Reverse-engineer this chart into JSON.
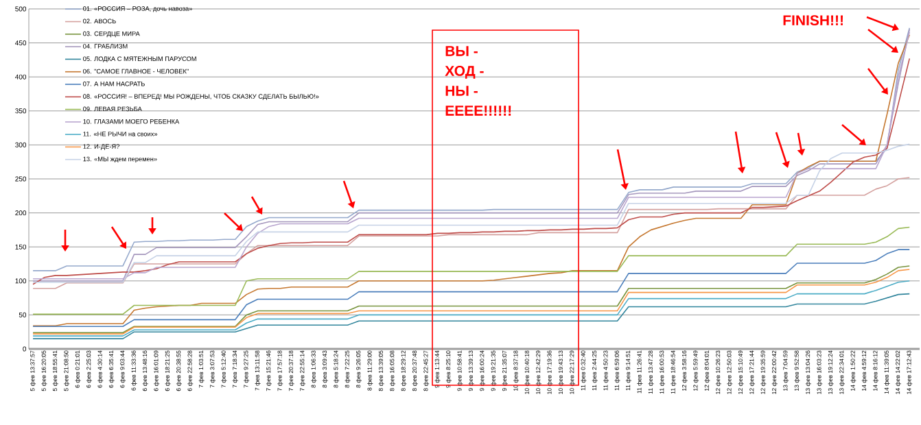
{
  "chart_data": {
    "type": "line",
    "categories": [
      "5 фев 13:37:57",
      "5 фев 16:20:05",
      "5 фев 18:55:41",
      "5 фев 21:08:50",
      "6 фев 0:21:01",
      "6 фев 2:25:03",
      "6 фев 4:30:14",
      "6 фев 6:35:41",
      "6 фев 9:03:44",
      "6 фев 11:33:36",
      "6 фев 13:48:16",
      "6 фев 16:01:09",
      "6 фев 18:21:25",
      "6 фев 20:38:55",
      "6 фев 22:58:28",
      "7 фев 1:03:51",
      "7 фев 3:07:53",
      "7 фев 5:12:40",
      "7 фев 7:18:34",
      "7 фев 9:27:25",
      "7 фев 13:11:58",
      "7 фев 15:21:46",
      "7 фев 17:57:18",
      "7 фев 20:37:18",
      "7 фев 22:55:14",
      "8 фев 1:06:33",
      "8 фев 3:09:43",
      "8 фев 5:18:24",
      "8 фев 7:22:25",
      "8 фев 9:26:05",
      "8 фев 11:29:00",
      "8 фев 13:39:05",
      "8 фев 16:05:08",
      "8 фев 18:29:12",
      "8 фев 20:37:48",
      "8 фев 22:45:27",
      "9 фев 1:13:44",
      "9 фев 8:25:10",
      "9 фев 10:58:41",
      "9 фев 13:39:13",
      "9 фев 16:00:24",
      "9 фев 19:21:35",
      "9 фев 21:35:07",
      "10 фев 8:37:18",
      "10 фев 10:40:18",
      "10 фев 12:42:29",
      "10 фев 17:19:36",
      "10 фев 19:43:13",
      "10 фев 22:17:29",
      "11 фев 0:32:40",
      "11 фев 2:44:25",
      "11 фев 4:50:23",
      "11 фев 6:59:06",
      "11 фев 9:14:51",
      "11 фев 11:26:41",
      "11 фев 13:47:28",
      "11 фев 16:00:53",
      "11 фев 18:46:54",
      "12 фев 3:58:16",
      "12 фев 5:59:49",
      "12 фев 8:04:01",
      "12 фев 10:26:23",
      "12 фев 12:50:03",
      "12 фев 15:10:49",
      "12 фев 17:21:44",
      "12 фев 19:35:59",
      "12 фев 22:00:42",
      "13 фев 7:04:59",
      "13 фев 9:52:58",
      "13 фев 13:04:26",
      "13 фев 16:03:23",
      "13 фев 19:12:24",
      "13 фев 22:34:01",
      "14 фев 1:50:22",
      "14 фев 4:59:12",
      "14 фев 8:16:12",
      "14 фев 11:39:05",
      "14 фев 14:22:02",
      "14 фев 17:12:43"
    ],
    "series": [
      {
        "name": "01. «РОССИЯ – РОЗА, дочь навоза»",
        "color": "#95A9CC",
        "values": [
          115,
          115,
          115,
          122,
          122,
          122,
          122,
          122,
          122,
          157,
          158,
          158,
          159,
          159,
          160,
          160,
          160,
          161,
          161,
          180,
          188,
          193,
          193,
          193,
          193,
          193,
          193,
          193,
          193,
          204,
          204,
          204,
          204,
          204,
          204,
          204,
          204,
          204,
          204,
          204,
          204,
          205,
          205,
          205,
          205,
          205,
          205,
          205,
          205,
          205,
          205,
          205,
          205,
          230,
          234,
          234,
          234,
          238,
          238,
          238,
          238,
          238,
          238,
          238,
          243,
          243,
          243,
          243,
          260,
          266,
          276,
          276,
          276,
          276,
          276,
          276,
          295,
          410,
          472
        ]
      },
      {
        "name": "02. АВОСЬ",
        "color": "#D4A09E",
        "values": [
          89,
          89,
          89,
          97,
          97,
          97,
          97,
          97,
          97,
          125,
          125,
          125,
          125,
          125,
          125,
          125,
          125,
          125,
          125,
          140,
          152,
          152,
          152,
          152,
          152,
          152,
          152,
          152,
          152,
          166,
          166,
          166,
          166,
          166,
          166,
          166,
          166,
          168,
          168,
          168,
          168,
          168,
          168,
          168,
          168,
          171,
          171,
          171,
          171,
          171,
          171,
          171,
          171,
          205,
          205,
          205,
          205,
          205,
          205,
          205,
          205,
          206,
          206,
          206,
          206,
          206,
          206,
          206,
          226,
          226,
          226,
          226,
          226,
          226,
          226,
          235,
          240,
          250,
          252
        ]
      },
      {
        "name": "03. СЕРДЦЕ МИРА",
        "color": "#77933C",
        "values": [
          24,
          24,
          24,
          24,
          24,
          24,
          24,
          24,
          24,
          33,
          33,
          33,
          33,
          33,
          33,
          33,
          33,
          33,
          33,
          50,
          56,
          56,
          56,
          56,
          56,
          56,
          56,
          56,
          56,
          63,
          63,
          63,
          63,
          63,
          63,
          63,
          63,
          63,
          63,
          63,
          63,
          63,
          63,
          63,
          63,
          63,
          63,
          63,
          63,
          63,
          63,
          63,
          63,
          89,
          89,
          89,
          89,
          89,
          89,
          89,
          89,
          89,
          89,
          89,
          89,
          89,
          89,
          89,
          97,
          97,
          97,
          97,
          97,
          97,
          97,
          102,
          110,
          120,
          122
        ]
      },
      {
        "name": "04. ГРАБЛИЗМ",
        "color": "#A597BD",
        "values": [
          100,
          100,
          100,
          100,
          100,
          100,
          100,
          100,
          100,
          139,
          139,
          149,
          149,
          149,
          149,
          149,
          149,
          149,
          149,
          165,
          183,
          187,
          187,
          187,
          187,
          187,
          187,
          187,
          187,
          200,
          200,
          200,
          200,
          200,
          200,
          200,
          200,
          200,
          200,
          200,
          200,
          200,
          200,
          200,
          200,
          200,
          200,
          200,
          200,
          200,
          200,
          200,
          200,
          227,
          229,
          229,
          229,
          229,
          229,
          232,
          232,
          232,
          232,
          232,
          239,
          239,
          239,
          239,
          255,
          262,
          272,
          272,
          272,
          272,
          272,
          272,
          300,
          390,
          470
        ]
      },
      {
        "name": "05. ЛОДКА С МЯТЕЖНЫМ  ПАРУСОМ",
        "color": "#31859C",
        "values": [
          15,
          15,
          15,
          15,
          15,
          15,
          15,
          15,
          15,
          25,
          25,
          25,
          25,
          25,
          25,
          25,
          25,
          25,
          25,
          30,
          35,
          35,
          35,
          35,
          35,
          35,
          35,
          35,
          35,
          41,
          41,
          41,
          41,
          41,
          41,
          41,
          41,
          41,
          41,
          41,
          41,
          41,
          41,
          41,
          41,
          41,
          41,
          41,
          41,
          41,
          41,
          41,
          41,
          62,
          62,
          62,
          62,
          62,
          62,
          62,
          62,
          62,
          62,
          62,
          62,
          62,
          62,
          62,
          66,
          66,
          66,
          66,
          66,
          66,
          66,
          70,
          75,
          80,
          81
        ]
      },
      {
        "name": "06. \"САМОЕ ГЛАВНОЕ - ЧЕЛОВЕК\"",
        "color": "#C5772F",
        "values": [
          34,
          34,
          34,
          37,
          37,
          37,
          37,
          37,
          37,
          57,
          60,
          62,
          63,
          64,
          64,
          67,
          67,
          67,
          67,
          80,
          88,
          89,
          89,
          91,
          91,
          91,
          91,
          91,
          91,
          100,
          100,
          100,
          100,
          100,
          100,
          100,
          100,
          100,
          100,
          100,
          100,
          101,
          103,
          105,
          107,
          109,
          111,
          112,
          115,
          115,
          115,
          115,
          115,
          150,
          165,
          175,
          180,
          185,
          189,
          192,
          192,
          192,
          192,
          192,
          212,
          212,
          212,
          212,
          258,
          268,
          276,
          276,
          276,
          276,
          276,
          276,
          345,
          420,
          462
        ]
      },
      {
        "name": "07. А НАМ НАСРАТЬ",
        "color": "#4A7EBB",
        "values": [
          33,
          33,
          33,
          33,
          33,
          33,
          33,
          33,
          33,
          43,
          43,
          43,
          43,
          43,
          43,
          43,
          43,
          43,
          43,
          65,
          73,
          73,
          73,
          73,
          73,
          73,
          73,
          73,
          73,
          84,
          84,
          84,
          84,
          84,
          84,
          84,
          84,
          84,
          84,
          84,
          84,
          84,
          84,
          84,
          84,
          84,
          84,
          84,
          84,
          84,
          84,
          84,
          84,
          111,
          111,
          111,
          111,
          111,
          111,
          111,
          111,
          111,
          111,
          111,
          111,
          111,
          111,
          111,
          126,
          126,
          126,
          126,
          126,
          126,
          126,
          130,
          140,
          146,
          146
        ]
      },
      {
        "name": "08. «РОССИЯ! – ВПЕРЕД! МЫ РОЖДЕНЫ, ЧТОБ СКАЗКУ СДЕЛАТЬ БЫЛЬЮ!»",
        "color": "#BE4B48",
        "values": [
          95,
          105,
          108,
          108,
          109,
          110,
          111,
          112,
          113,
          113,
          115,
          118,
          124,
          128,
          128,
          128,
          128,
          128,
          128,
          140,
          148,
          152,
          155,
          156,
          156,
          157,
          157,
          157,
          157,
          168,
          168,
          168,
          168,
          168,
          168,
          168,
          170,
          170,
          171,
          171,
          172,
          172,
          173,
          173,
          174,
          174,
          175,
          175,
          176,
          176,
          177,
          177,
          178,
          190,
          194,
          194,
          194,
          198,
          200,
          200,
          200,
          200,
          200,
          200,
          208,
          208,
          209,
          210,
          218,
          225,
          232,
          245,
          260,
          275,
          282,
          285,
          295,
          360,
          427
        ]
      },
      {
        "name": "09. ЛЕВАЯ РЕЗЬБА",
        "color": "#98B954",
        "values": [
          51,
          51,
          51,
          51,
          51,
          51,
          51,
          51,
          51,
          64,
          64,
          64,
          64,
          64,
          64,
          64,
          64,
          64,
          64,
          100,
          103,
          103,
          103,
          103,
          103,
          103,
          103,
          103,
          103,
          114,
          114,
          114,
          114,
          114,
          114,
          114,
          114,
          114,
          114,
          114,
          114,
          114,
          114,
          114,
          114,
          114,
          114,
          114,
          114,
          114,
          114,
          114,
          114,
          137,
          137,
          137,
          137,
          137,
          137,
          137,
          137,
          137,
          137,
          137,
          137,
          137,
          137,
          137,
          154,
          154,
          154,
          154,
          154,
          154,
          154,
          157,
          165,
          177,
          179
        ]
      },
      {
        "name": "10. ГЛАЗАМИ МОЕГО РЕБЕНКА",
        "color": "#B9A6CF",
        "values": [
          103,
          103,
          103,
          103,
          103,
          103,
          103,
          103,
          103,
          112,
          112,
          120,
          120,
          120,
          120,
          120,
          120,
          120,
          120,
          150,
          170,
          180,
          184,
          184,
          184,
          184,
          184,
          184,
          184,
          192,
          192,
          192,
          192,
          192,
          192,
          192,
          192,
          192,
          192,
          192,
          192,
          192,
          192,
          192,
          192,
          192,
          192,
          192,
          192,
          192,
          192,
          192,
          192,
          223,
          223,
          223,
          223,
          223,
          223,
          223,
          223,
          223,
          223,
          223,
          223,
          223,
          223,
          223,
          258,
          265,
          265,
          265,
          265,
          265,
          265,
          265,
          300,
          400,
          466
        ]
      },
      {
        "name": "11. «НЕ РЫЧИ на своих»",
        "color": "#4BACC6",
        "values": [
          19,
          19,
          19,
          19,
          19,
          19,
          19,
          19,
          19,
          28,
          28,
          28,
          28,
          28,
          28,
          28,
          28,
          28,
          28,
          38,
          44,
          44,
          44,
          44,
          44,
          44,
          44,
          44,
          44,
          50,
          50,
          50,
          50,
          50,
          50,
          50,
          50,
          50,
          50,
          50,
          50,
          50,
          50,
          50,
          50,
          50,
          50,
          50,
          50,
          50,
          50,
          50,
          50,
          74,
          74,
          74,
          74,
          74,
          74,
          74,
          74,
          74,
          74,
          74,
          74,
          74,
          74,
          74,
          81,
          81,
          81,
          81,
          81,
          81,
          81,
          86,
          92,
          98,
          100
        ]
      },
      {
        "name": "12. И-ДЕ-Я?",
        "color": "#F79646",
        "values": [
          22,
          22,
          22,
          22,
          22,
          22,
          22,
          22,
          22,
          32,
          32,
          32,
          32,
          32,
          32,
          32,
          32,
          32,
          32,
          46,
          52,
          52,
          52,
          52,
          52,
          52,
          52,
          52,
          52,
          56,
          56,
          56,
          56,
          56,
          56,
          56,
          56,
          56,
          56,
          56,
          56,
          56,
          56,
          56,
          56,
          56,
          56,
          56,
          56,
          56,
          56,
          56,
          56,
          83,
          83,
          83,
          83,
          83,
          83,
          83,
          83,
          83,
          83,
          83,
          83,
          83,
          83,
          83,
          94,
          94,
          94,
          94,
          94,
          94,
          94,
          98,
          105,
          115,
          117
        ]
      },
      {
        "name": "13. «МЫ ждем перемен»",
        "color": "#C6D2E6",
        "values": [
          98,
          98,
          98,
          98,
          98,
          98,
          98,
          98,
          98,
          127,
          127,
          137,
          137,
          137,
          137,
          137,
          137,
          137,
          137,
          158,
          172,
          172,
          172,
          172,
          172,
          172,
          172,
          172,
          172,
          182,
          182,
          182,
          182,
          182,
          182,
          182,
          182,
          182,
          182,
          182,
          182,
          182,
          182,
          182,
          182,
          182,
          182,
          182,
          182,
          182,
          182,
          182,
          182,
          214,
          214,
          214,
          214,
          214,
          214,
          214,
          214,
          214,
          214,
          214,
          214,
          214,
          214,
          214,
          226,
          226,
          262,
          280,
          288,
          288,
          288,
          288,
          292,
          298,
          301
        ]
      }
    ],
    "ylim": [
      0,
      500
    ],
    "yticks": [
      0,
      50,
      100,
      150,
      200,
      250,
      300,
      350,
      400,
      450,
      500
    ],
    "grid": "y",
    "legend": "top left",
    "marker": "none",
    "line_style": "solid",
    "annotations": [
      "ВЫ - ХОД - НЫ - ЕЕЕЕ!!!!!!",
      "FINISH!!!"
    ]
  }
}
